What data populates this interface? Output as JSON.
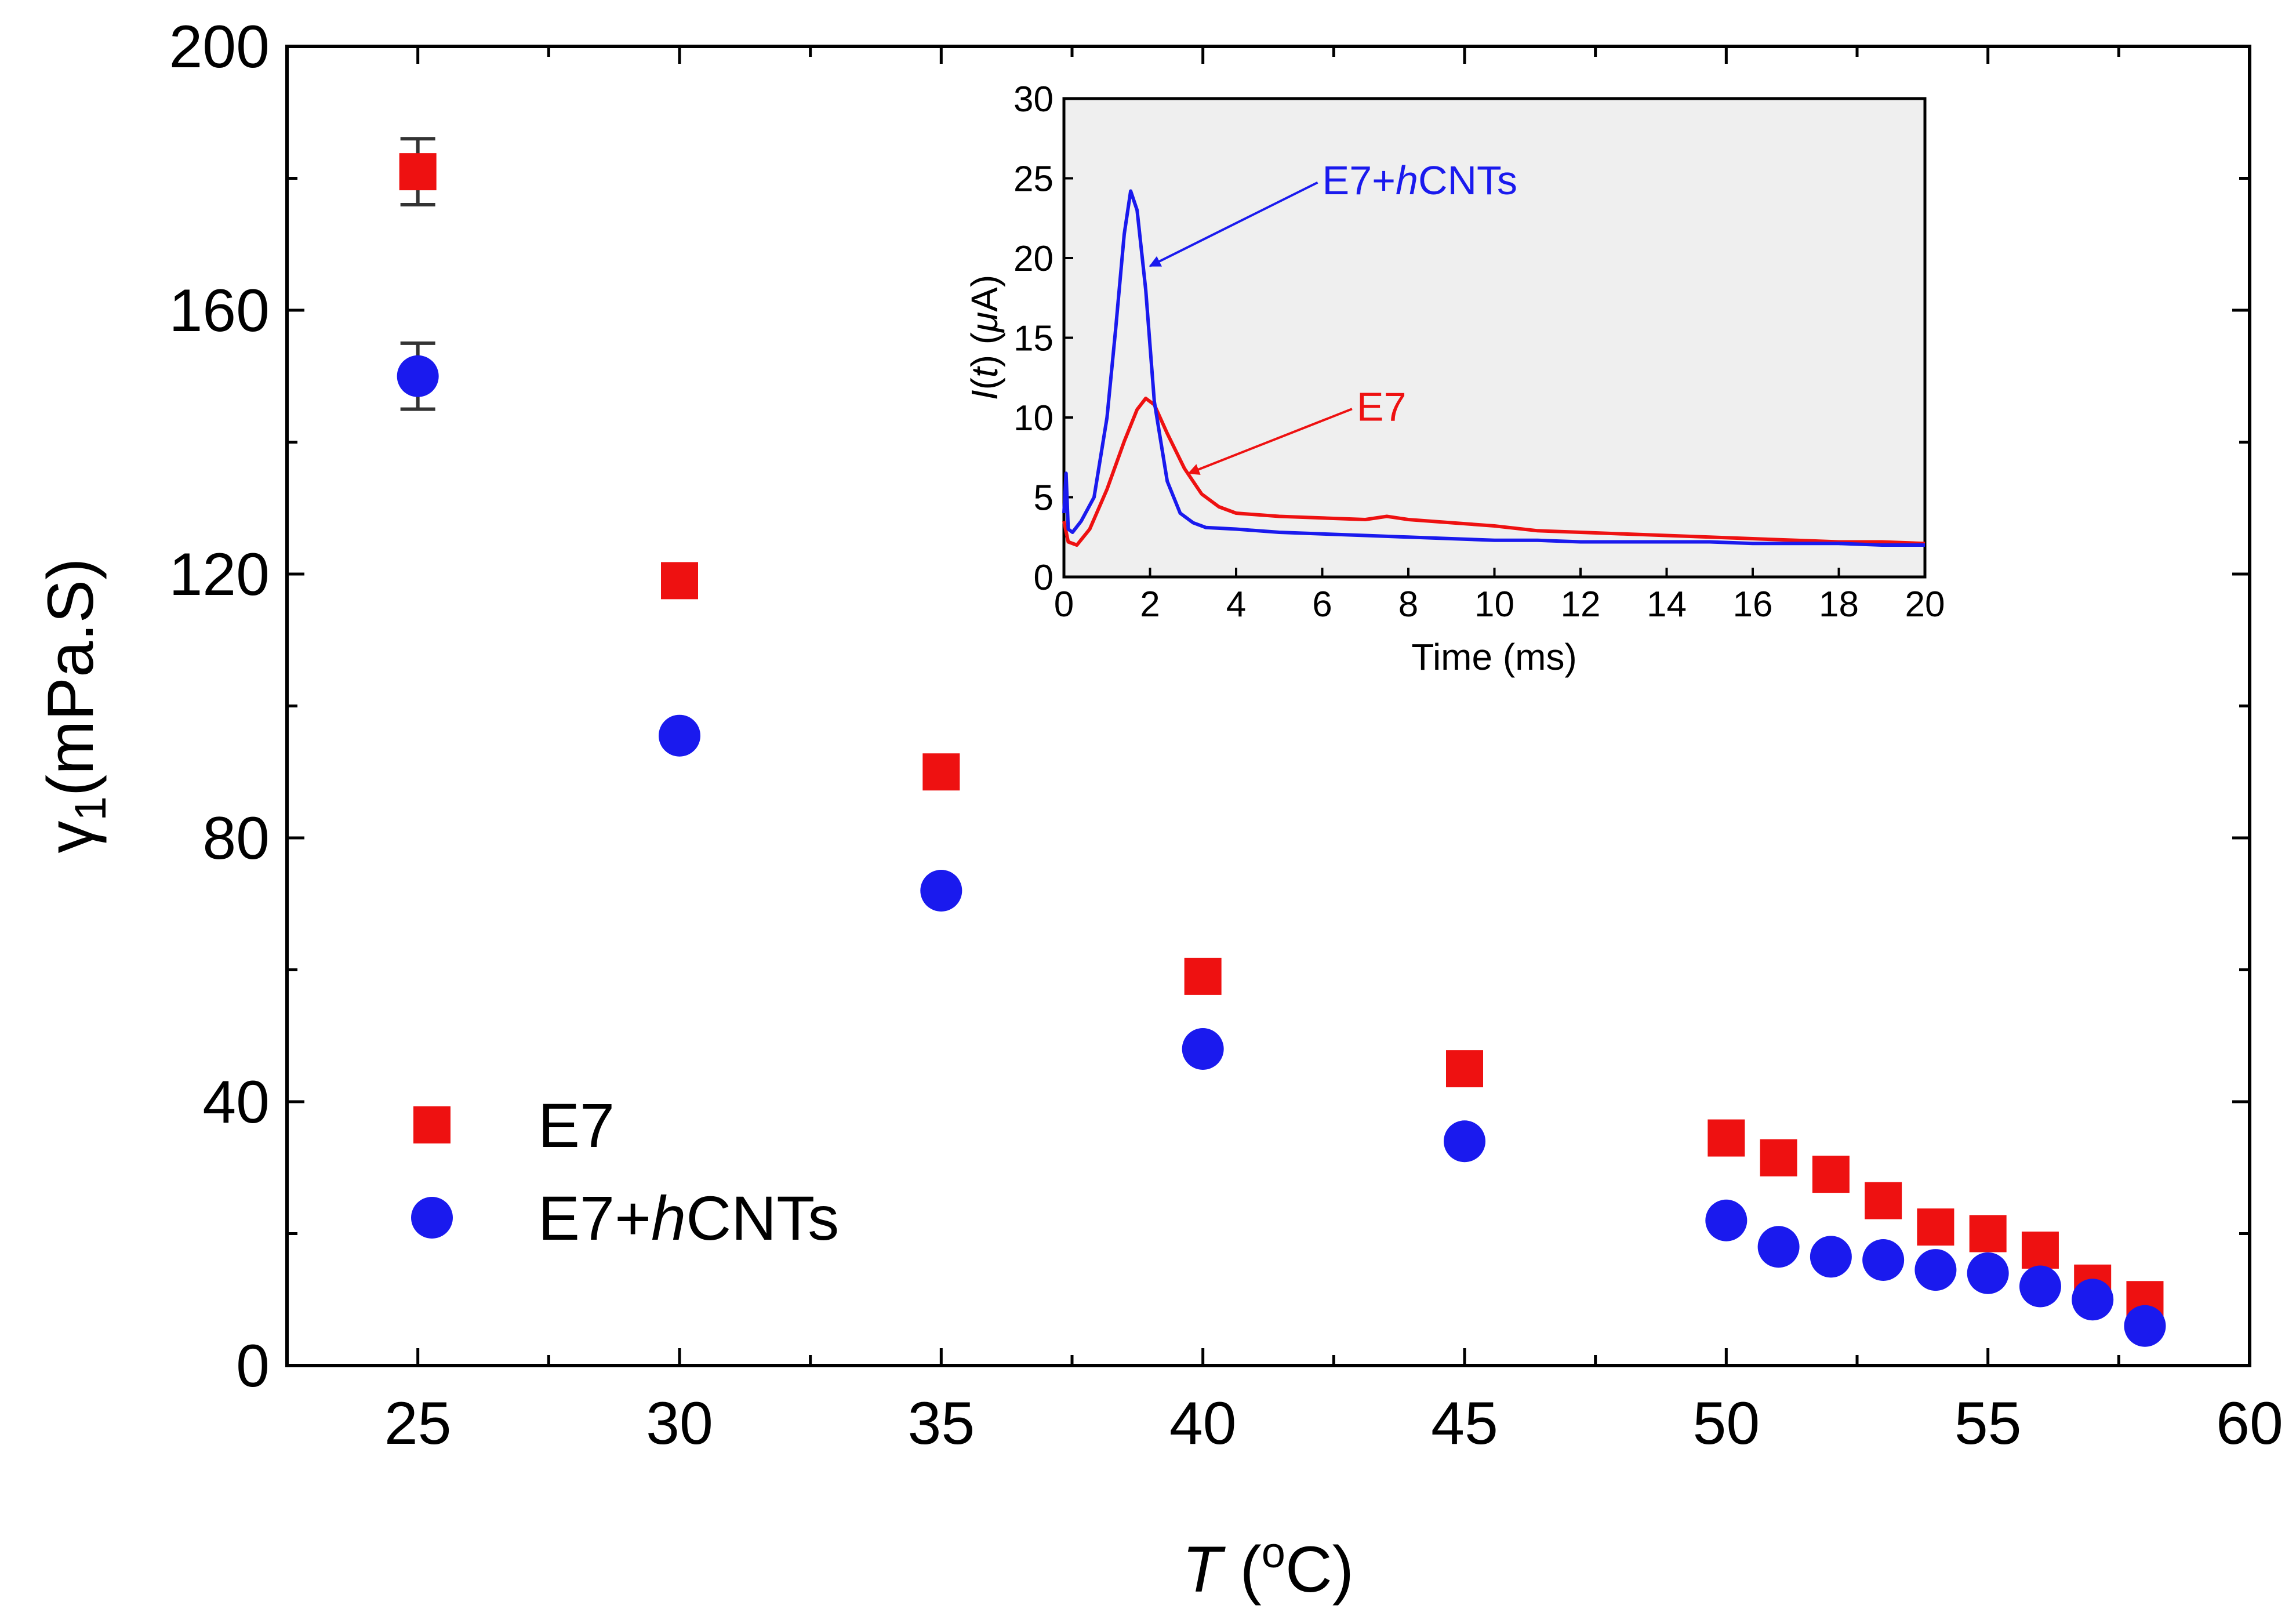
{
  "chart_data": [
    {
      "type": "scatter",
      "xlabel_italic": "T",
      "xlabel_unit_pre": " (",
      "xlabel_sup": "o",
      "xlabel_unit_post": "C)",
      "ylabel_main": "γ",
      "ylabel_sub": "1",
      "ylabel_unit": "(mPa.S)",
      "xlim": [
        22.5,
        60
      ],
      "ylim": [
        0,
        200
      ],
      "xticks": [
        25,
        30,
        35,
        40,
        45,
        50,
        55,
        60
      ],
      "yticks": [
        0,
        40,
        80,
        120,
        160,
        200
      ],
      "grid": false,
      "legend_position": "bottom-left",
      "series": [
        {
          "name": "E7",
          "name_pre": "E7",
          "marker": "square",
          "color": "#ee1111",
          "x": [
            25,
            30,
            35,
            40,
            45,
            50,
            51,
            52,
            53,
            54,
            55,
            56,
            57,
            58
          ],
          "y": [
            181,
            119,
            90,
            59,
            45,
            34.5,
            31.5,
            29,
            25,
            21,
            20,
            17.5,
            12.5,
            10
          ],
          "error_bars": [
            {
              "x": 25,
              "low": 176,
              "high": 186
            }
          ]
        },
        {
          "name": "E7+hCNTs",
          "name_pre": "E7+",
          "name_italic": "h",
          "name_post": "CNTs",
          "marker": "circle",
          "color": "#1a1aee",
          "x": [
            25,
            30,
            35,
            40,
            45,
            50,
            51,
            52,
            53,
            54,
            55,
            56,
            57,
            58
          ],
          "y": [
            150,
            95.5,
            72,
            48,
            34,
            22,
            18,
            16.5,
            16,
            14.5,
            14,
            12,
            10,
            6
          ],
          "error_bars": [
            {
              "x": 25,
              "low": 145,
              "high": 155
            }
          ]
        }
      ]
    },
    {
      "type": "line",
      "inset": true,
      "xlabel": "Time (ms)",
      "ylabel_italic": "I",
      "ylabel_paren": "(",
      "ylabel_t": "t",
      "ylabel_mid": ") (",
      "ylabel_mu": "μ",
      "ylabel_unit": "A)",
      "xlim": [
        0,
        20
      ],
      "ylim": [
        0,
        30
      ],
      "xticks": [
        0,
        2,
        4,
        6,
        8,
        10,
        12,
        14,
        16,
        18,
        20
      ],
      "yticks": [
        0,
        5,
        10,
        15,
        20,
        25,
        30
      ],
      "grid": false,
      "background": "#efefef",
      "series": [
        {
          "name": "E7",
          "color": "#ee1111",
          "x": [
            0,
            0.1,
            0.3,
            0.6,
            1.0,
            1.4,
            1.7,
            1.9,
            2.1,
            2.4,
            2.8,
            3.2,
            3.6,
            4.0,
            5,
            6,
            7,
            7.5,
            8,
            9,
            10,
            11,
            12,
            13,
            14,
            15,
            16,
            17,
            18,
            19,
            20
          ],
          "y": [
            3.5,
            2.2,
            2.0,
            3.0,
            5.5,
            8.5,
            10.5,
            11.2,
            10.8,
            9.0,
            6.8,
            5.2,
            4.4,
            4.0,
            3.8,
            3.7,
            3.6,
            3.8,
            3.6,
            3.4,
            3.2,
            2.9,
            2.8,
            2.7,
            2.6,
            2.5,
            2.4,
            2.3,
            2.2,
            2.2,
            2.1
          ]
        },
        {
          "name": "E7+hCNTs",
          "color": "#1a1aee",
          "x": [
            0,
            0.05,
            0.1,
            0.2,
            0.4,
            0.7,
            1.0,
            1.2,
            1.4,
            1.55,
            1.7,
            1.9,
            2.1,
            2.4,
            2.7,
            3.0,
            3.3,
            4,
            5,
            6,
            7,
            8,
            9,
            10,
            11,
            12,
            13,
            14,
            15,
            16,
            17,
            18,
            19,
            20
          ],
          "y": [
            4.0,
            6.5,
            3.0,
            2.8,
            3.5,
            5.0,
            10.0,
            15.5,
            21.5,
            24.2,
            23.0,
            18.0,
            11.0,
            6.0,
            4.0,
            3.4,
            3.1,
            3.0,
            2.8,
            2.7,
            2.6,
            2.5,
            2.4,
            2.3,
            2.3,
            2.2,
            2.2,
            2.2,
            2.2,
            2.1,
            2.1,
            2.1,
            2.0,
            2.0
          ]
        }
      ],
      "annotations": [
        {
          "series": "E7+hCNTs",
          "pre": "E7+",
          "italic": "h",
          "post": "CNTs",
          "color": "#1a1aee",
          "text_x": 6,
          "text_y": 24.3,
          "arrow_to_x": 2.0,
          "arrow_to_y": 19.5
        },
        {
          "series": "E7",
          "pre": "E7",
          "italic": "",
          "post": "",
          "color": "#ee1111",
          "text_x": 6.8,
          "text_y": 10.1,
          "arrow_to_x": 2.9,
          "arrow_to_y": 6.5
        }
      ]
    }
  ]
}
